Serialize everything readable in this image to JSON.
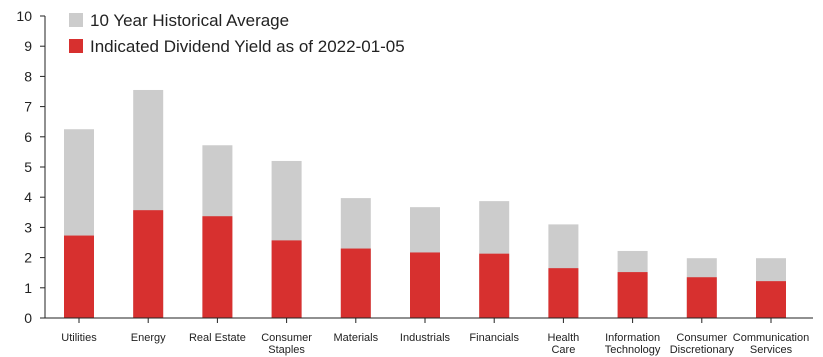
{
  "chart_data": {
    "type": "bar",
    "stacked": false,
    "overlaid": true,
    "categories": [
      [
        "Utilities"
      ],
      [
        "Energy"
      ],
      [
        "Real Estate"
      ],
      [
        "Consumer",
        "Staples"
      ],
      [
        "Materials"
      ],
      [
        "Industrials"
      ],
      [
        "Financials"
      ],
      [
        "Health",
        "Care"
      ],
      [
        "Information",
        "Technology"
      ],
      [
        "Consumer",
        "Discretionary"
      ],
      [
        "Communication",
        "Services"
      ]
    ],
    "series": [
      {
        "name": "10 Year Historical Average",
        "color": "#cccccc",
        "values": [
          6.25,
          7.55,
          5.72,
          5.2,
          3.97,
          3.67,
          3.87,
          3.1,
          2.22,
          1.98,
          1.98
        ]
      },
      {
        "name": "Indicated Dividend Yield as of 2022-01-05",
        "color": "#d7302f",
        "values": [
          2.73,
          3.57,
          3.37,
          2.57,
          2.3,
          2.17,
          2.13,
          1.65,
          1.52,
          1.35,
          1.22
        ]
      }
    ],
    "ylim": [
      0,
      10
    ],
    "yticks": [
      "0",
      "1",
      "2",
      "3",
      "4",
      "5",
      "6",
      "7",
      "8",
      "9",
      "10"
    ],
    "xlabel": "",
    "ylabel": "",
    "legend_position": "top-left",
    "grid": false
  }
}
